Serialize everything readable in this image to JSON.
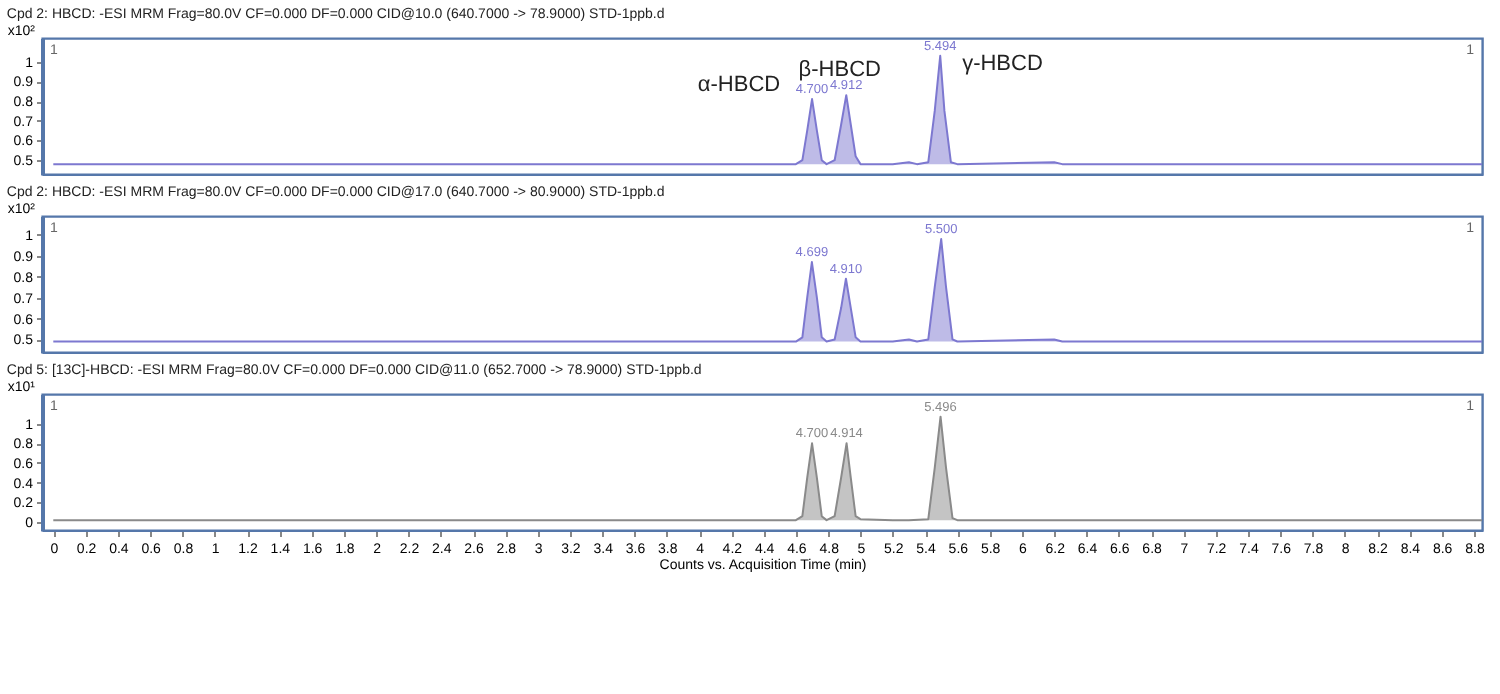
{
  "chart_data": [
    {
      "type": "area",
      "title": "Cpd 2: HBCD: -ESI MRM Frag=80.0V CF=0.000 DF=0.000 CID@10.0 (640.7000 -> 78.9000) STD-1ppb.d",
      "ylabel": "x10²",
      "xlim": [
        -0.07,
        8.85
      ],
      "ylim": [
        0.43,
        1.12
      ],
      "yticks": [
        0.5,
        0.6,
        0.7,
        0.8,
        0.9,
        1
      ],
      "tick_labels": "y",
      "series": [
        {
          "color": "#7d78d0",
          "x": [
            0,
            1.0,
            2.0,
            3.0,
            4.0,
            4.6,
            4.64,
            4.67,
            4.7,
            4.73,
            4.76,
            4.79,
            4.84,
            4.88,
            4.912,
            4.94,
            4.97,
            5.0,
            5.2,
            5.3,
            5.35,
            5.42,
            5.46,
            5.494,
            5.52,
            5.56,
            5.6,
            6.2,
            6.25,
            7.0,
            8.0,
            8.85
          ],
          "values": [
            0.48,
            0.48,
            0.48,
            0.48,
            0.48,
            0.48,
            0.5,
            0.65,
            0.81,
            0.65,
            0.5,
            0.48,
            0.5,
            0.68,
            0.83,
            0.68,
            0.52,
            0.48,
            0.48,
            0.49,
            0.48,
            0.49,
            0.75,
            1.03,
            0.75,
            0.49,
            0.48,
            0.49,
            0.48,
            0.48,
            0.48,
            0.48
          ]
        }
      ],
      "annotations": [
        "1",
        "1",
        "α-HBCD",
        "β-HBCD",
        "γ-HBCD",
        {
          "text": "4.700",
          "x": 4.7,
          "y": 0.81
        },
        {
          "text": "4.912",
          "x": 4.912,
          "y": 0.83
        },
        {
          "text": "5.494",
          "x": 5.494,
          "y": 1.03
        }
      ]
    },
    {
      "type": "area",
      "title": "Cpd 2: HBCD: -ESI MRM Frag=80.0V CF=0.000 DF=0.000 CID@17.0 (640.7000 -> 80.9000) STD-1ppb.d",
      "ylabel": "x10²",
      "xlim": [
        -0.07,
        8.85
      ],
      "ylim": [
        0.44,
        1.09
      ],
      "yticks": [
        0.5,
        0.6,
        0.7,
        0.8,
        0.9,
        1
      ],
      "tick_labels": "y",
      "series": [
        {
          "color": "#7d78d0",
          "x": [
            0,
            1.0,
            2.0,
            3.0,
            4.0,
            4.6,
            4.64,
            4.67,
            4.699,
            4.73,
            4.76,
            4.79,
            4.84,
            4.88,
            4.91,
            4.94,
            4.97,
            5.0,
            5.2,
            5.3,
            5.35,
            5.42,
            5.46,
            5.5,
            5.53,
            5.57,
            5.6,
            6.2,
            6.25,
            7.0,
            8.0,
            8.85
          ],
          "values": [
            0.49,
            0.49,
            0.49,
            0.49,
            0.49,
            0.49,
            0.51,
            0.7,
            0.87,
            0.7,
            0.51,
            0.49,
            0.5,
            0.65,
            0.79,
            0.65,
            0.51,
            0.49,
            0.49,
            0.5,
            0.49,
            0.5,
            0.75,
            0.98,
            0.75,
            0.5,
            0.49,
            0.5,
            0.49,
            0.49,
            0.49,
            0.49
          ]
        }
      ],
      "annotations": [
        "1",
        "1",
        {
          "text": "4.699",
          "x": 4.699,
          "y": 0.87
        },
        {
          "text": "4.910",
          "x": 4.91,
          "y": 0.79
        },
        {
          "text": "5.500",
          "x": 5.5,
          "y": 0.98
        }
      ]
    },
    {
      "type": "area",
      "title": "Cpd 5: [13C]-HBCD: -ESI MRM Frag=80.0V CF=0.000 DF=0.000 CID@11.0 (652.7000 -> 78.9000) STD-1ppb.d",
      "ylabel": "x10¹",
      "xlabel": "Counts vs. Acquisition Time (min)",
      "xlim": [
        -0.07,
        8.85
      ],
      "ylim": [
        -0.08,
        1.3
      ],
      "yticks": [
        0,
        0.2,
        0.4,
        0.6,
        0.8,
        1
      ],
      "xticks": [
        0,
        0.2,
        0.4,
        0.6,
        0.8,
        1,
        1.2,
        1.4,
        1.6,
        1.8,
        2,
        2.2,
        2.4,
        2.6,
        2.8,
        3,
        3.2,
        3.4,
        3.6,
        3.8,
        4,
        4.2,
        4.4,
        4.6,
        4.8,
        5,
        5.2,
        5.4,
        5.6,
        5.8,
        6,
        6.2,
        6.4,
        6.6,
        6.8,
        7,
        7.2,
        7.4,
        7.6,
        7.8,
        8,
        8.2,
        8.4,
        8.6,
        8.8
      ],
      "series": [
        {
          "color": "#8a8a8a",
          "x": [
            0,
            1.0,
            2.0,
            3.0,
            4.0,
            4.6,
            4.64,
            4.67,
            4.7,
            4.73,
            4.76,
            4.79,
            4.84,
            4.88,
            4.914,
            4.94,
            4.97,
            5.0,
            5.2,
            5.3,
            5.42,
            5.46,
            5.496,
            5.53,
            5.57,
            5.6,
            7.0,
            8.0,
            8.85
          ],
          "values": [
            0.02,
            0.02,
            0.02,
            0.02,
            0.02,
            0.02,
            0.06,
            0.45,
            0.8,
            0.45,
            0.06,
            0.02,
            0.06,
            0.45,
            0.8,
            0.45,
            0.06,
            0.03,
            0.02,
            0.02,
            0.03,
            0.55,
            1.07,
            0.55,
            0.04,
            0.02,
            0.02,
            0.02,
            0.02
          ]
        }
      ],
      "annotations": [
        "1",
        "1",
        {
          "text": "4.700",
          "x": 4.7,
          "y": 0.8
        },
        {
          "text": "4.914",
          "x": 4.914,
          "y": 0.8
        },
        {
          "text": "5.496",
          "x": 5.496,
          "y": 1.07
        }
      ]
    }
  ]
}
